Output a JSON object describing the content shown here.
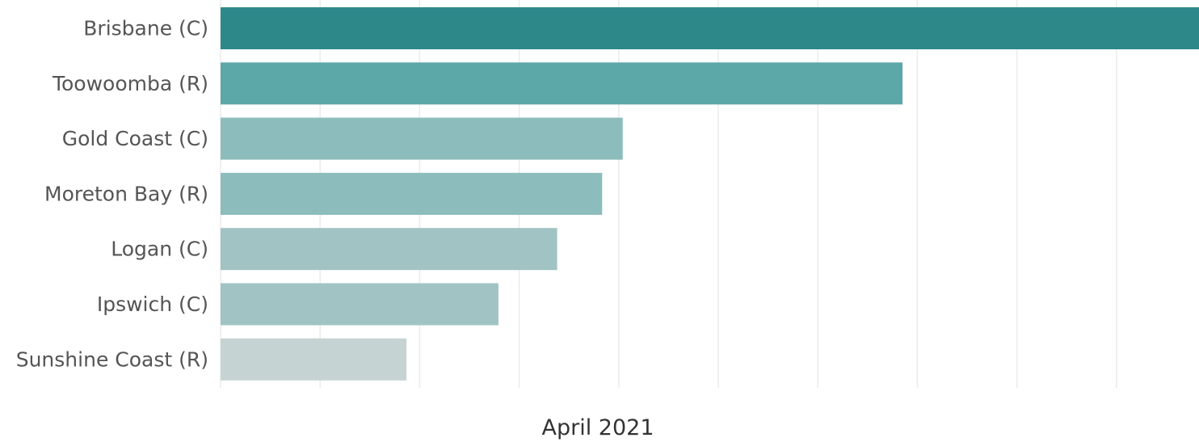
{
  "chart_data": {
    "type": "bar",
    "orientation": "horizontal",
    "categories": [
      "Brisbane (C)",
      "Toowoomba (R)",
      "Gold Coast (C)",
      "Moreton Bay (R)",
      "Logan (C)",
      "Ipswich (C)",
      "Sunshine Coast (R)"
    ],
    "values": [
      100,
      69.7,
      41.1,
      39.0,
      34.4,
      28.4,
      19.0
    ],
    "bar_colors": [
      "#2c8889",
      "#5ca7a8",
      "#8dbcbc",
      "#8dbcbc",
      "#a1c3c4",
      "#a1c3c4",
      "#c5d4d3"
    ],
    "gridline_color": "#ebebeb",
    "xlim": [
      0,
      100
    ],
    "grid": true,
    "title": "",
    "xlabel": "April 2021",
    "ylabel": ""
  }
}
